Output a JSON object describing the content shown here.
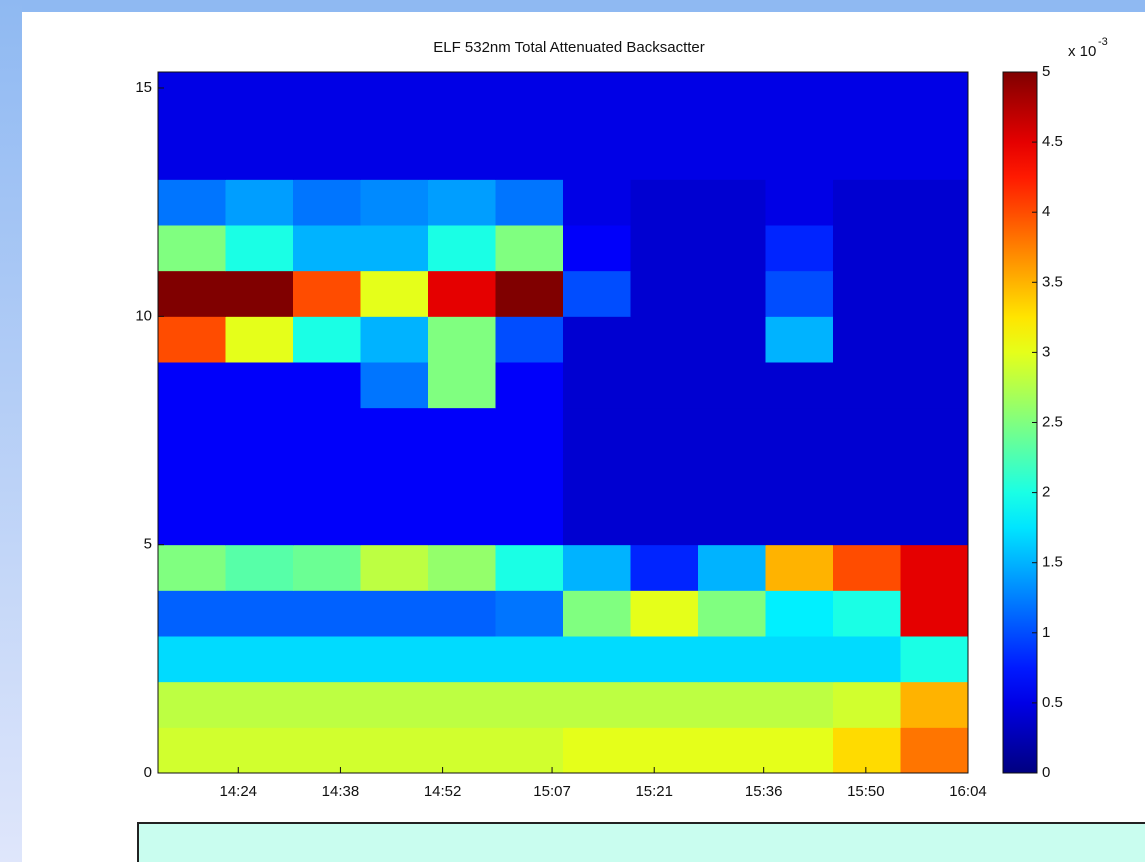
{
  "chart_data": {
    "type": "heatmap",
    "title": "ELF 532nm Total Attenuated Backsactter",
    "x_bins": [
      853,
      862.25,
      871.5,
      880.75,
      890,
      899.25,
      908.5,
      917.75,
      927,
      936.25,
      945.5,
      954.75,
      964
    ],
    "y_bins": [
      0,
      1,
      2,
      3,
      4,
      5,
      6,
      7,
      8,
      9,
      10,
      11,
      12,
      13,
      14,
      15,
      15.35
    ],
    "values": [
      [
        2.9,
        2.9,
        2.9,
        2.9,
        2.9,
        2.9,
        3.0,
        3.0,
        3.0,
        3.0,
        3.3,
        3.8
      ],
      [
        2.8,
        2.8,
        2.8,
        2.8,
        2.8,
        2.8,
        2.8,
        2.8,
        2.8,
        2.8,
        2.9,
        3.5
      ],
      [
        1.7,
        1.7,
        1.7,
        1.7,
        1.7,
        1.7,
        1.7,
        1.7,
        1.7,
        1.7,
        1.7,
        2.0
      ],
      [
        1.1,
        1.1,
        1.1,
        1.1,
        1.1,
        1.2,
        2.5,
        3.0,
        2.5,
        1.8,
        2.0,
        4.5
      ],
      [
        2.5,
        2.3,
        2.4,
        2.8,
        2.6,
        2.0,
        1.5,
        0.8,
        1.5,
        3.5,
        4.0,
        4.5
      ],
      [
        0.6,
        0.6,
        0.6,
        0.6,
        0.6,
        0.6,
        0.4,
        0.4,
        0.4,
        0.4,
        0.4,
        0.4
      ],
      [
        0.6,
        0.6,
        0.6,
        0.6,
        0.6,
        0.6,
        0.4,
        0.4,
        0.4,
        0.4,
        0.4,
        0.4
      ],
      [
        0.6,
        0.6,
        0.6,
        0.6,
        0.6,
        0.6,
        0.4,
        0.4,
        0.4,
        0.4,
        0.4,
        0.4
      ],
      [
        0.6,
        0.6,
        0.6,
        1.2,
        2.5,
        0.6,
        0.4,
        0.4,
        0.4,
        0.4,
        0.4,
        0.4
      ],
      [
        4.0,
        3.0,
        2.0,
        1.5,
        2.5,
        1.0,
        0.4,
        0.4,
        0.4,
        1.5,
        0.4,
        0.4
      ],
      [
        5.0,
        5.0,
        4.0,
        3.0,
        4.5,
        5.0,
        1.0,
        0.4,
        0.4,
        1.0,
        0.4,
        0.4
      ],
      [
        2.5,
        2.0,
        1.5,
        1.5,
        2.0,
        2.5,
        0.6,
        0.4,
        0.4,
        0.8,
        0.4,
        0.4
      ],
      [
        1.2,
        1.4,
        1.2,
        1.3,
        1.4,
        1.2,
        0.5,
        0.4,
        0.4,
        0.5,
        0.4,
        0.4
      ],
      [
        0.5,
        0.5,
        0.5,
        0.5,
        0.5,
        0.5,
        0.5,
        0.5,
        0.5,
        0.5,
        0.5,
        0.5
      ],
      [
        0.5,
        0.5,
        0.5,
        0.5,
        0.5,
        0.5,
        0.5,
        0.5,
        0.5,
        0.5,
        0.5,
        0.5
      ],
      [
        0.5,
        0.5,
        0.5,
        0.5,
        0.5,
        0.5,
        0.5,
        0.5,
        0.5,
        0.5,
        0.5,
        0.5
      ]
    ],
    "colormap": "jet",
    "xlim": [
      853,
      964
    ],
    "xticks": [
      {
        "value": 864,
        "label": "14:24"
      },
      {
        "value": 878,
        "label": "14:38"
      },
      {
        "value": 892,
        "label": "14:52"
      },
      {
        "value": 907,
        "label": "15:07"
      },
      {
        "value": 921,
        "label": "15:21"
      },
      {
        "value": 936,
        "label": "15:36"
      },
      {
        "value": 950,
        "label": "15:50"
      },
      {
        "value": 964,
        "label": "16:04"
      }
    ],
    "ylim": [
      0,
      15.35
    ],
    "yticks": [
      0,
      5,
      10,
      15
    ],
    "clim": [
      0,
      5
    ],
    "cticks": [
      0,
      0.5,
      1,
      1.5,
      2,
      2.5,
      3,
      3.5,
      4,
      4.5,
      5
    ],
    "colorbar_multiplier": {
      "base": "x 10",
      "exponent": "-3"
    }
  }
}
